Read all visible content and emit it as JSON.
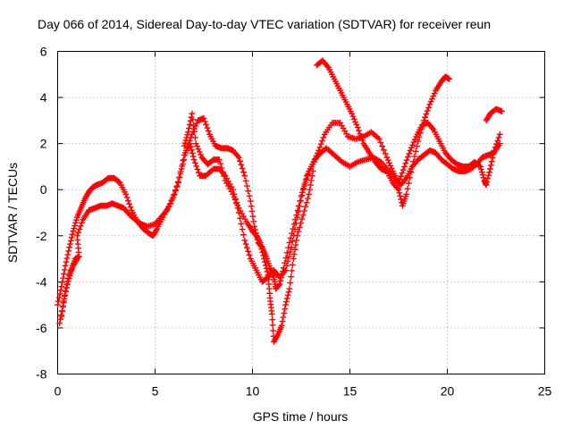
{
  "chart_data": {
    "type": "scatter",
    "title": "Day 066 of 2014, Sidereal Day-to-day VTEC variation (SDTVAR) for receiver reun",
    "xlabel": "GPS time / hours",
    "ylabel": "SDTVAR / TECUs",
    "xlim": [
      0,
      25
    ],
    "ylim": [
      -8,
      6
    ],
    "xticks": [
      "0",
      "5",
      "10",
      "15",
      "20",
      "25"
    ],
    "yticks": [
      "-8",
      "-6",
      "-4",
      "-2",
      "0",
      "2",
      "4",
      "6"
    ],
    "grid": true,
    "marker": "plus",
    "color": "#ff0000",
    "series": [
      {
        "points": [
          [
            0.0,
            -5.0
          ],
          [
            0.2,
            -4.2
          ],
          [
            0.4,
            -3.3
          ],
          [
            0.6,
            -2.5
          ],
          [
            0.8,
            -1.8
          ],
          [
            1.0,
            -1.2
          ],
          [
            1.2,
            -0.8
          ],
          [
            1.4,
            -0.4
          ],
          [
            1.6,
            -0.1
          ],
          [
            1.8,
            0.1
          ],
          [
            2.0,
            0.2
          ],
          [
            2.3,
            0.3
          ],
          [
            2.6,
            0.5
          ],
          [
            2.9,
            0.5
          ],
          [
            3.2,
            0.3
          ],
          [
            3.5,
            -0.2
          ],
          [
            3.8,
            -0.9
          ],
          [
            4.1,
            -1.4
          ],
          [
            4.4,
            -1.7
          ],
          [
            4.7,
            -1.9
          ],
          [
            4.9,
            -2.0
          ],
          [
            5.1,
            -1.7
          ],
          [
            5.4,
            -1.2
          ],
          [
            5.8,
            -0.6
          ],
          [
            6.2,
            0.3
          ],
          [
            6.5,
            1.5
          ],
          [
            6.8,
            2.0
          ],
          [
            7.0,
            1.3
          ],
          [
            7.3,
            0.6
          ],
          [
            7.6,
            0.6
          ],
          [
            8.0,
            0.9
          ],
          [
            8.3,
            0.9
          ],
          [
            8.6,
            0.6
          ],
          [
            9.0,
            0.0
          ],
          [
            9.3,
            -1.0
          ],
          [
            9.6,
            -2.2
          ],
          [
            9.9,
            -3.0
          ],
          [
            10.2,
            -3.5
          ],
          [
            10.5,
            -4.0
          ],
          [
            10.8,
            -3.8
          ],
          [
            11.1,
            -3.5
          ],
          [
            11.4,
            -3.8
          ],
          [
            11.7,
            -3.5
          ],
          [
            12.0,
            -2.5
          ],
          [
            12.3,
            -1.2
          ],
          [
            12.6,
            0.0
          ],
          [
            12.9,
            0.8
          ],
          [
            13.2,
            1.3
          ],
          [
            13.5,
            1.6
          ],
          [
            13.8,
            1.8
          ],
          [
            14.2,
            1.5
          ],
          [
            14.6,
            1.2
          ],
          [
            15.0,
            1.0
          ],
          [
            15.4,
            1.2
          ],
          [
            15.8,
            1.3
          ],
          [
            16.2,
            1.4
          ],
          [
            16.6,
            1.2
          ],
          [
            17.0,
            0.8
          ],
          [
            17.3,
            0.5
          ],
          [
            17.6,
            0.2
          ],
          [
            17.9,
            0.5
          ],
          [
            18.2,
            1.0
          ],
          [
            18.5,
            1.3
          ],
          [
            18.8,
            1.5
          ],
          [
            19.1,
            1.7
          ],
          [
            19.4,
            1.6
          ],
          [
            19.7,
            1.3
          ],
          [
            20.0,
            1.1
          ],
          [
            20.3,
            0.9
          ],
          [
            20.6,
            0.8
          ],
          [
            20.9,
            0.8
          ],
          [
            21.2,
            0.9
          ],
          [
            21.5,
            1.1
          ],
          [
            21.8,
            1.4
          ],
          [
            22.1,
            1.5
          ],
          [
            22.4,
            1.6
          ],
          [
            22.7,
            2.0
          ]
        ]
      },
      {
        "points": [
          [
            0.1,
            -5.8
          ],
          [
            0.3,
            -4.9
          ],
          [
            0.5,
            -4.1
          ],
          [
            0.7,
            -3.5
          ],
          [
            0.9,
            -3.0
          ],
          [
            1.1,
            -2.9
          ],
          [
            1.0,
            -2.0
          ],
          [
            1.3,
            -1.3
          ],
          [
            1.6,
            -0.9
          ],
          [
            1.9,
            -0.8
          ],
          [
            2.2,
            -0.7
          ],
          [
            2.5,
            -0.7
          ],
          [
            2.8,
            -0.6
          ],
          [
            3.1,
            -0.7
          ],
          [
            3.4,
            -0.8
          ],
          [
            3.7,
            -1.1
          ],
          [
            4.0,
            -1.3
          ],
          [
            4.3,
            -1.5
          ],
          [
            4.6,
            -1.6
          ],
          [
            5.0,
            -1.5
          ],
          [
            5.3,
            -1.2
          ],
          [
            5.6,
            -0.9
          ],
          [
            6.0,
            -0.2
          ],
          [
            6.3,
            0.7
          ],
          [
            6.6,
            1.7
          ],
          [
            6.9,
            2.4
          ],
          [
            7.2,
            3.0
          ],
          [
            7.5,
            3.1
          ],
          [
            7.8,
            2.4
          ],
          [
            8.1,
            1.9
          ],
          [
            8.4,
            1.8
          ],
          [
            8.7,
            1.8
          ],
          [
            9.0,
            1.7
          ],
          [
            9.3,
            1.4
          ],
          [
            9.6,
            0.6
          ],
          [
            9.9,
            -0.5
          ],
          [
            10.1,
            -1.6
          ],
          [
            10.3,
            -2.3
          ],
          [
            10.5,
            -2.5
          ],
          [
            10.7,
            -2.9
          ],
          [
            10.9,
            -3.4
          ],
          [
            11.1,
            -3.8
          ],
          [
            11.2,
            -4.3
          ],
          [
            11.4,
            -4.1
          ],
          [
            11.6,
            -3.4
          ],
          [
            11.9,
            -2.3
          ],
          [
            12.2,
            -1.3
          ],
          [
            12.5,
            -0.3
          ],
          [
            12.8,
            0.6
          ],
          [
            13.1,
            1.1
          ],
          [
            13.4,
            1.7
          ],
          [
            13.7,
            2.4
          ],
          [
            14.1,
            2.9
          ],
          [
            14.5,
            2.9
          ],
          [
            14.9,
            2.3
          ],
          [
            15.3,
            2.2
          ],
          [
            15.7,
            2.3
          ],
          [
            16.1,
            2.5
          ],
          [
            16.5,
            2.2
          ],
          [
            16.9,
            1.4
          ],
          [
            17.2,
            0.8
          ],
          [
            17.5,
            0.3
          ],
          [
            17.8,
            1.0
          ],
          [
            18.1,
            1.7
          ],
          [
            18.4,
            2.3
          ],
          [
            18.7,
            2.8
          ],
          [
            19.0,
            2.9
          ],
          [
            19.3,
            2.6
          ],
          [
            19.6,
            2.1
          ],
          [
            19.9,
            1.6
          ],
          [
            20.2,
            1.3
          ],
          [
            20.5,
            1.1
          ],
          [
            20.8,
            1.0
          ],
          [
            21.1,
            1.0
          ],
          [
            21.4,
            1.2
          ],
          [
            21.7,
            1.0
          ],
          [
            21.9,
            0.4
          ],
          [
            22.0,
            0.2
          ],
          [
            22.2,
            0.9
          ],
          [
            22.4,
            1.7
          ],
          [
            22.7,
            2.4
          ]
        ]
      },
      {
        "points": [
          [
            0.2,
            -5.5
          ],
          [
            0.4,
            -4.4
          ],
          [
            0.6,
            -3.7
          ],
          [
            0.8,
            -3.3
          ],
          [
            1.0,
            -3.0
          ],
          [
            6.5,
            1.9
          ],
          [
            6.7,
            2.5
          ],
          [
            6.9,
            3.3
          ],
          [
            7.1,
            2.0
          ],
          [
            7.4,
            1.4
          ],
          [
            7.7,
            1.1
          ],
          [
            8.0,
            1.3
          ],
          [
            8.3,
            1.3
          ],
          [
            8.6,
            0.4
          ],
          [
            9.0,
            -0.2
          ],
          [
            9.3,
            -0.8
          ],
          [
            9.7,
            -1.4
          ],
          [
            10.0,
            -1.8
          ],
          [
            10.2,
            -2.0
          ],
          [
            10.4,
            -2.3
          ],
          [
            10.6,
            -3.0
          ],
          [
            10.8,
            -3.7
          ],
          [
            10.9,
            -4.7
          ],
          [
            11.0,
            -5.4
          ],
          [
            11.1,
            -6.6
          ],
          [
            11.3,
            -6.3
          ],
          [
            11.5,
            -5.9
          ],
          [
            11.7,
            -5.0
          ],
          [
            11.9,
            -4.3
          ],
          [
            12.1,
            -3.0
          ],
          [
            12.3,
            -2.0
          ],
          [
            12.6,
            -1.1
          ],
          [
            12.9,
            -0.2
          ],
          [
            13.1,
            0.8
          ],
          [
            13.3,
            5.4
          ],
          [
            13.6,
            5.6
          ],
          [
            13.9,
            5.3
          ],
          [
            14.2,
            4.8
          ],
          [
            14.5,
            4.3
          ],
          [
            14.8,
            3.8
          ],
          [
            15.1,
            3.3
          ],
          [
            15.4,
            2.7
          ],
          [
            15.7,
            2.0
          ],
          [
            16.0,
            1.6
          ],
          [
            16.3,
            1.2
          ],
          [
            16.6,
            0.9
          ],
          [
            16.9,
            0.8
          ],
          [
            17.2,
            0.3
          ],
          [
            17.5,
            0.0
          ],
          [
            17.7,
            -0.7
          ],
          [
            17.9,
            -0.2
          ],
          [
            18.2,
            1.0
          ],
          [
            18.5,
            2.1
          ],
          [
            18.8,
            3.0
          ],
          [
            19.1,
            3.7
          ],
          [
            19.4,
            4.3
          ],
          [
            19.7,
            4.7
          ],
          [
            19.9,
            4.9
          ],
          [
            20.1,
            4.8
          ],
          [
            22.0,
            3.0
          ],
          [
            22.2,
            3.3
          ],
          [
            22.5,
            3.5
          ],
          [
            22.8,
            3.4
          ]
        ]
      }
    ]
  }
}
